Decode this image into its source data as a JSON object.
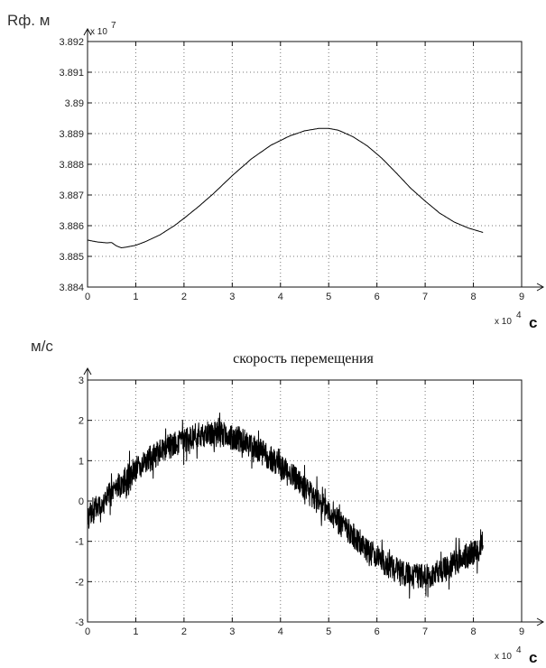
{
  "chart_data": [
    {
      "type": "line",
      "title": "",
      "ylabel": "Rф. м",
      "y_multiplier": "x 10",
      "y_exponent": "7",
      "xlabel": "с",
      "x_multiplier": "x 10",
      "x_exponent": "4",
      "xlim": [
        0,
        9
      ],
      "ylim": [
        3.884,
        3.892
      ],
      "x_ticks": [
        "0",
        "1",
        "2",
        "3",
        "4",
        "5",
        "6",
        "7",
        "8",
        "9"
      ],
      "y_ticks": [
        "3.884",
        "3.885",
        "3.886",
        "3.887",
        "3.888",
        "3.889",
        "3.89",
        "3.891",
        "3.892"
      ],
      "grid": true,
      "series": [
        {
          "x": [
            0.0,
            0.2,
            0.4,
            0.5,
            0.6,
            0.7,
            0.8,
            1.0,
            1.2,
            1.5,
            1.8,
            2.0,
            2.3,
            2.6,
            3.0,
            3.4,
            3.8,
            4.2,
            4.5,
            4.8,
            5.0,
            5.2,
            5.5,
            5.8,
            6.1,
            6.4,
            6.7,
            7.0,
            7.3,
            7.6,
            7.9,
            8.2
          ],
          "y": [
            3.88553,
            3.88547,
            3.88544,
            3.88545,
            3.88534,
            3.88528,
            3.8853,
            3.88536,
            3.88548,
            3.8857,
            3.886,
            3.88624,
            3.88662,
            3.88703,
            3.88763,
            3.88818,
            3.88862,
            3.88893,
            3.88909,
            3.88917,
            3.88917,
            3.88911,
            3.8889,
            3.8886,
            3.8882,
            3.88772,
            3.88722,
            3.8868,
            3.88641,
            3.88612,
            3.88592,
            3.88578
          ]
        }
      ]
    },
    {
      "type": "line",
      "title": "скорость перемещения",
      "ylabel": "м/с",
      "xlabel": "с",
      "x_multiplier": "x 10",
      "x_exponent": "4",
      "xlim": [
        0,
        9
      ],
      "ylim": [
        -3,
        3
      ],
      "x_ticks": [
        "0",
        "1",
        "2",
        "3",
        "4",
        "5",
        "6",
        "7",
        "8",
        "9"
      ],
      "y_ticks": [
        "-3",
        "-2",
        "-1",
        "0",
        "1",
        "2",
        "3"
      ],
      "grid": true,
      "series": [
        {
          "x": [
            0.0,
            0.2,
            0.5,
            0.8,
            1.0,
            1.3,
            1.6,
            1.9,
            2.2,
            2.5,
            2.8,
            3.1,
            3.4,
            3.7,
            4.0,
            4.3,
            4.6,
            4.9,
            5.2,
            5.5,
            5.8,
            6.1,
            6.4,
            6.7,
            7.0,
            7.3,
            7.6,
            7.9,
            8.2
          ],
          "y": [
            -0.4,
            -0.15,
            0.2,
            0.55,
            0.8,
            1.05,
            1.3,
            1.45,
            1.6,
            1.65,
            1.65,
            1.55,
            1.4,
            1.15,
            0.85,
            0.55,
            0.2,
            -0.15,
            -0.5,
            -0.85,
            -1.2,
            -1.5,
            -1.7,
            -1.85,
            -1.9,
            -1.75,
            -1.55,
            -1.35,
            -1.1
          ]
        }
      ]
    }
  ]
}
